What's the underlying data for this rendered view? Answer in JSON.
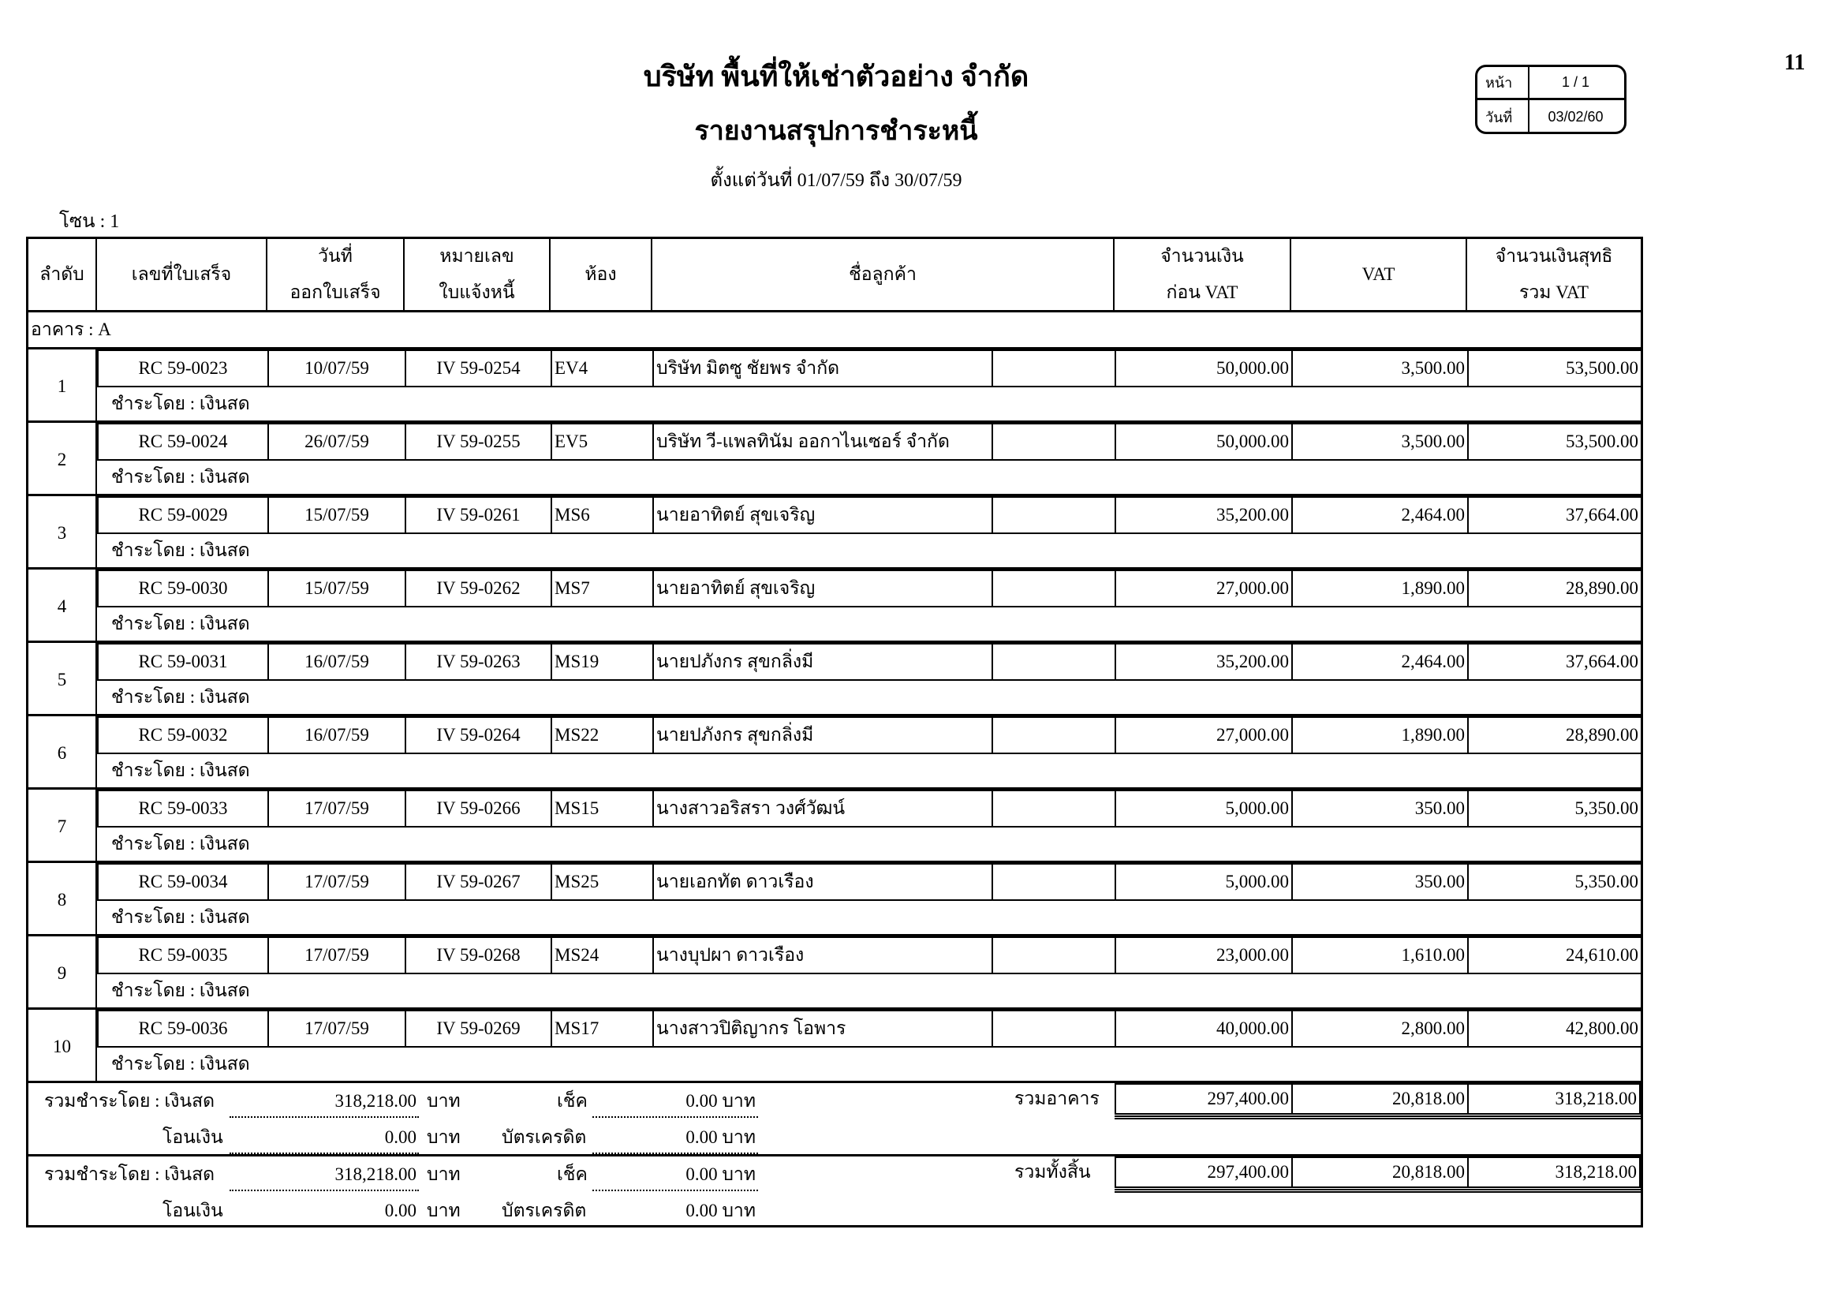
{
  "header": {
    "company": "บริษัท พื้นที่ให้เช่าตัวอย่าง จำกัด",
    "report_title": "รายงานสรุปการชำระหนี้",
    "date_range": "ตั้งแต่วันที่ 01/07/59 ถึง 30/07/59",
    "page_number": "11",
    "info": {
      "page_label": "หน้า",
      "page_value": "1 / 1",
      "date_label": "วันที่",
      "date_value": "03/02/60"
    },
    "zone": "โซน : 1"
  },
  "columns": {
    "order": "ลำดับ",
    "receipt_no": "เลขที่ใบเสร็จ",
    "receipt_date_1": "วันที่",
    "receipt_date_2": "ออกใบเสร็จ",
    "invoice_no_1": "หมายเลข",
    "invoice_no_2": "ใบแจ้งหนี้",
    "room": "ห้อง",
    "customer": "ชื่อลูกค้า",
    "amount_1": "จำนวนเงิน",
    "amount_2": "ก่อน VAT",
    "vat": "VAT",
    "net_1": "จำนวนเงินสุทธิ",
    "net_2": "รวม VAT"
  },
  "building": "อาคาร : A",
  "rows": [
    {
      "order": "1",
      "receipt": "RC 59-0023",
      "date": "10/07/59",
      "invoice": "IV 59-0254",
      "room": "EV4",
      "customer": "บริษัท มิตซู ชัยพร จำกัด",
      "amount": "50,000.00",
      "vat": "3,500.00",
      "net": "53,500.00",
      "paid_by": "ชำระโดย : เงินสด"
    },
    {
      "order": "2",
      "receipt": "RC 59-0024",
      "date": "26/07/59",
      "invoice": "IV 59-0255",
      "room": "EV5",
      "customer": "บริษัท วี-แพลทินัม ออกาไนเซอร์ จำกัด",
      "amount": "50,000.00",
      "vat": "3,500.00",
      "net": "53,500.00",
      "paid_by": "ชำระโดย : เงินสด"
    },
    {
      "order": "3",
      "receipt": "RC 59-0029",
      "date": "15/07/59",
      "invoice": "IV 59-0261",
      "room": "MS6",
      "customer": "นายอาทิตย์ สุขเจริญ",
      "amount": "35,200.00",
      "vat": "2,464.00",
      "net": "37,664.00",
      "paid_by": "ชำระโดย : เงินสด"
    },
    {
      "order": "4",
      "receipt": "RC 59-0030",
      "date": "15/07/59",
      "invoice": "IV 59-0262",
      "room": "MS7",
      "customer": "นายอาทิตย์ สุขเจริญ",
      "amount": "27,000.00",
      "vat": "1,890.00",
      "net": "28,890.00",
      "paid_by": "ชำระโดย : เงินสด"
    },
    {
      "order": "5",
      "receipt": "RC 59-0031",
      "date": "16/07/59",
      "invoice": "IV 59-0263",
      "room": "MS19",
      "customer": "นายปภังกร สุขกลิ่งมี",
      "amount": "35,200.00",
      "vat": "2,464.00",
      "net": "37,664.00",
      "paid_by": "ชำระโดย : เงินสด"
    },
    {
      "order": "6",
      "receipt": "RC 59-0032",
      "date": "16/07/59",
      "invoice": "IV 59-0264",
      "room": "MS22",
      "customer": "นายปภังกร สุขกลิ่งมี",
      "amount": "27,000.00",
      "vat": "1,890.00",
      "net": "28,890.00",
      "paid_by": "ชำระโดย : เงินสด"
    },
    {
      "order": "7",
      "receipt": "RC 59-0033",
      "date": "17/07/59",
      "invoice": "IV 59-0266",
      "room": "MS15",
      "customer": "นางสาวอริสรา วงศ์วัฒน์",
      "amount": "5,000.00",
      "vat": "350.00",
      "net": "5,350.00",
      "paid_by": "ชำระโดย : เงินสด"
    },
    {
      "order": "8",
      "receipt": "RC 59-0034",
      "date": "17/07/59",
      "invoice": "IV 59-0267",
      "room": "MS25",
      "customer": "นายเอกทัต ดาวเรือง",
      "amount": "5,000.00",
      "vat": "350.00",
      "net": "5,350.00",
      "paid_by": "ชำระโดย : เงินสด"
    },
    {
      "order": "9",
      "receipt": "RC 59-0035",
      "date": "17/07/59",
      "invoice": "IV 59-0268",
      "room": "MS24",
      "customer": "นางบุปผา ดาวเรือง",
      "amount": "23,000.00",
      "vat": "1,610.00",
      "net": "24,610.00",
      "paid_by": "ชำระโดย : เงินสด"
    },
    {
      "order": "10",
      "receipt": "RC 59-0036",
      "date": "17/07/59",
      "invoice": "IV 59-0269",
      "room": "MS17",
      "customer": "นางสาวปิติญากร โอพาร",
      "amount": "40,000.00",
      "vat": "2,800.00",
      "net": "42,800.00",
      "paid_by": "ชำระโดย : เงินสด"
    }
  ],
  "summaries": [
    {
      "label": "รวมชำระโดย : เงินสด",
      "cash": "318,218.00",
      "baht": "บาท",
      "cheque_label": "เช็ค",
      "cheque": "0.00 บาท",
      "transfer_label": "โอนเงิน",
      "transfer": "0.00",
      "credit_label": "บัตรเครดิต",
      "credit": "0.00 บาท",
      "total_label": "รวมอาคาร",
      "amount": "297,400.00",
      "vat": "20,818.00",
      "net": "318,218.00"
    },
    {
      "label": "รวมชำระโดย : เงินสด",
      "cash": "318,218.00",
      "baht": "บาท",
      "cheque_label": "เช็ค",
      "cheque": "0.00 บาท",
      "transfer_label": "โอนเงิน",
      "transfer": "0.00",
      "credit_label": "บัตรเครดิต",
      "credit": "0.00 บาท",
      "total_label": "รวมทั้งสิ้น",
      "amount": "297,400.00",
      "vat": "20,818.00",
      "net": "318,218.00"
    }
  ]
}
